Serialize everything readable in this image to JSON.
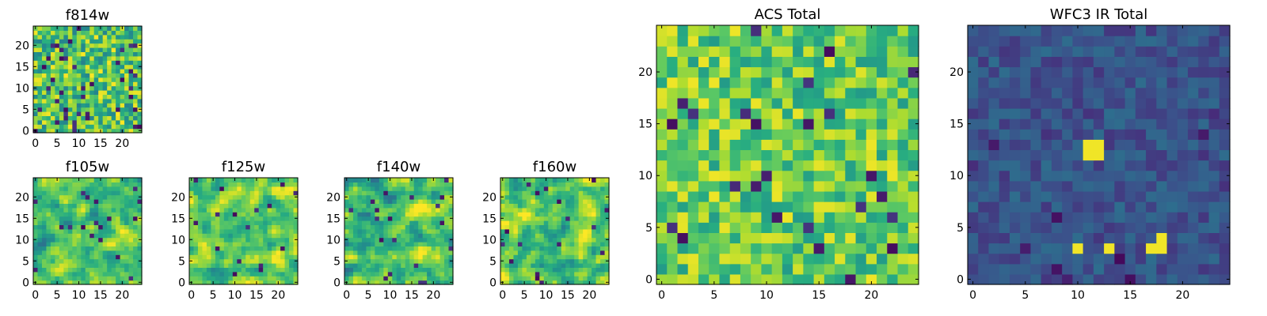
{
  "figure": {
    "layout_note": "Small-multiples of 25x25 pixel images; heatmaps rendered with a viridis colormap."
  },
  "chart_data": [
    {
      "type": "heatmap",
      "title": "f814w",
      "xticks": [
        0,
        5,
        10,
        15,
        20
      ],
      "yticks": [
        0,
        5,
        10,
        15,
        20
      ],
      "xlim": [
        -0.5,
        24.5
      ],
      "ylim": [
        -0.5,
        24.5
      ],
      "size": [
        25,
        25
      ],
      "colormap": "viridis",
      "seed": 814,
      "mode": "noise",
      "base": 0.72,
      "spread": 0.28,
      "dark_fraction": 0.06
    },
    {
      "type": "heatmap",
      "title": "f105w",
      "xticks": [
        0,
        5,
        10,
        15,
        20
      ],
      "yticks": [
        0,
        5,
        10,
        15,
        20
      ],
      "xlim": [
        -0.5,
        24.5
      ],
      "ylim": [
        -0.5,
        24.5
      ],
      "size": [
        25,
        25
      ],
      "colormap": "viridis",
      "seed": 105,
      "mode": "smooth",
      "base": 0.72,
      "spread": 0.26,
      "dark_fraction": 0.03
    },
    {
      "type": "heatmap",
      "title": "f125w",
      "xticks": [
        0,
        5,
        10,
        15,
        20
      ],
      "yticks": [
        0,
        5,
        10,
        15,
        20
      ],
      "xlim": [
        -0.5,
        24.5
      ],
      "ylim": [
        -0.5,
        24.5
      ],
      "size": [
        25,
        25
      ],
      "colormap": "viridis",
      "seed": 125,
      "mode": "smooth",
      "base": 0.76,
      "spread": 0.24,
      "dark_fraction": 0.02
    },
    {
      "type": "heatmap",
      "title": "f140w",
      "xticks": [
        0,
        5,
        10,
        15,
        20
      ],
      "yticks": [
        0,
        5,
        10,
        15,
        20
      ],
      "xlim": [
        -0.5,
        24.5
      ],
      "ylim": [
        -0.5,
        24.5
      ],
      "size": [
        25,
        25
      ],
      "colormap": "viridis",
      "seed": 140,
      "mode": "smooth",
      "base": 0.72,
      "spread": 0.27,
      "dark_fraction": 0.03
    },
    {
      "type": "heatmap",
      "title": "f160w",
      "xticks": [
        0,
        5,
        10,
        15,
        20
      ],
      "yticks": [
        0,
        5,
        10,
        15,
        20
      ],
      "xlim": [
        -0.5,
        24.5
      ],
      "ylim": [
        -0.5,
        24.5
      ],
      "size": [
        25,
        25
      ],
      "colormap": "viridis",
      "seed": 160,
      "mode": "smooth",
      "base": 0.74,
      "spread": 0.26,
      "dark_fraction": 0.02
    },
    {
      "type": "heatmap",
      "title": "ACS Total",
      "xticks": [
        0,
        5,
        10,
        15,
        20
      ],
      "yticks": [
        0,
        5,
        10,
        15,
        20
      ],
      "xlim": [
        -0.5,
        24.5
      ],
      "ylim": [
        -0.5,
        24.5
      ],
      "size": [
        25,
        25
      ],
      "colormap": "viridis",
      "seed": 9001,
      "mode": "noise",
      "base": 0.76,
      "spread": 0.22,
      "dark_fraction": 0.04
    },
    {
      "type": "heatmap",
      "title": "WFC3 IR Total",
      "xticks": [
        0,
        5,
        10,
        15,
        20
      ],
      "yticks": [
        0,
        5,
        10,
        15,
        20
      ],
      "xlim": [
        -0.5,
        24.5
      ],
      "ylim": [
        -0.5,
        24.5
      ],
      "size": [
        25,
        25
      ],
      "colormap": "viridis",
      "seed": 3001,
      "mode": "faint",
      "base": 0.26,
      "spread": 0.1,
      "dark_fraction": 0.03,
      "bright_spots": [
        [
          11,
          12
        ],
        [
          12,
          12
        ],
        [
          11,
          13
        ],
        [
          12,
          13
        ],
        [
          17,
          3
        ],
        [
          18,
          3
        ],
        [
          18,
          4
        ],
        [
          10,
          3
        ],
        [
          13,
          3
        ]
      ]
    }
  ]
}
